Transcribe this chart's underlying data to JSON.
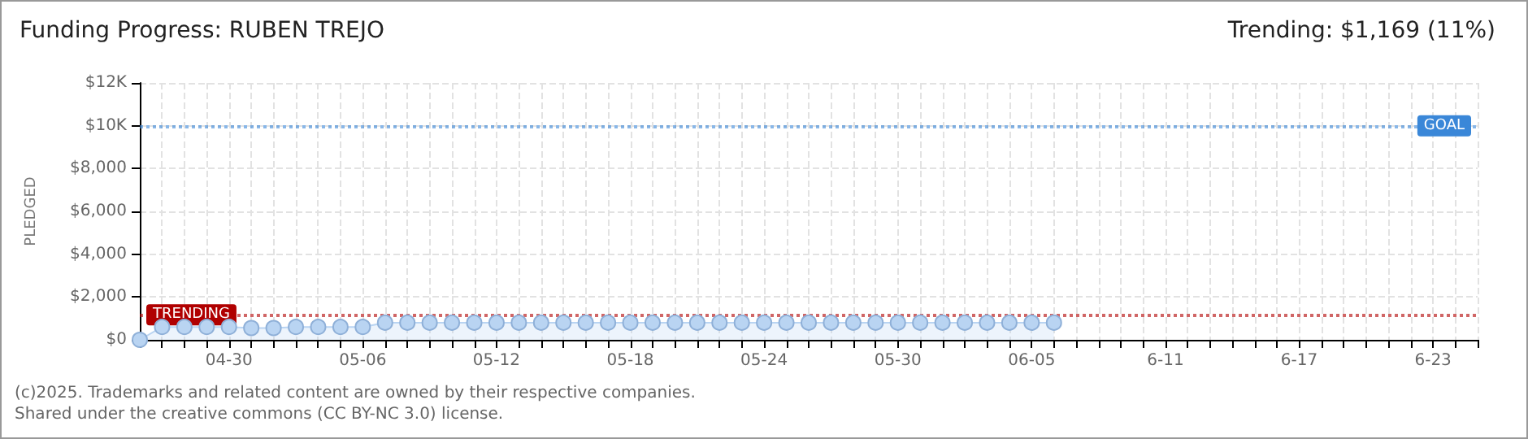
{
  "chart_data": {
    "type": "area",
    "title": "Funding Progress: RUBEN TREJO",
    "subtitle": "Trending: $1,169 (11%)",
    "ylabel": "PLEDGED",
    "categories": [
      null,
      null,
      null,
      null,
      "04-30",
      null,
      null,
      null,
      null,
      null,
      "05-06",
      null,
      null,
      null,
      null,
      null,
      "05-12",
      null,
      null,
      null,
      null,
      null,
      "05-18",
      null,
      null,
      null,
      null,
      null,
      "05-24",
      null,
      null,
      null,
      null,
      null,
      "05-30",
      null,
      null,
      null,
      null,
      null,
      "06-05",
      null,
      null,
      null,
      null,
      null,
      "6-11",
      null,
      null,
      null,
      null,
      null,
      "6-17",
      null,
      null,
      null,
      null,
      null,
      "6-23",
      null,
      null
    ],
    "series": [
      {
        "color": "#b9d4f2",
        "values": [
          0,
          600,
          600,
          600,
          600,
          550,
          550,
          600,
          600,
          600,
          600,
          800,
          800,
          800,
          800,
          800,
          800,
          800,
          800,
          800,
          800,
          800,
          800,
          800,
          800,
          800,
          800,
          800,
          800,
          800,
          800,
          800,
          800,
          800,
          800,
          800,
          800,
          800,
          800,
          800,
          800,
          800,
          null,
          null,
          null,
          null,
          null,
          null,
          null,
          null,
          null,
          null,
          null,
          null,
          null,
          null,
          null,
          null,
          null,
          null,
          null
        ]
      }
    ],
    "ylim": [
      0,
      12000
    ],
    "yticks": [
      {
        "value": 0,
        "label": "$0"
      },
      {
        "value": 2000,
        "label": "$2,000"
      },
      {
        "value": 4000,
        "label": "$4,000"
      },
      {
        "value": 6000,
        "label": "$6,000"
      },
      {
        "value": 8000,
        "label": "$8,000"
      },
      {
        "value": 10000,
        "label": "$10K"
      },
      {
        "value": 12000,
        "label": "$12K"
      }
    ],
    "ref_lines": [
      {
        "axis": "y",
        "value": 10000,
        "label": "GOAL",
        "color": "#3a87d8",
        "line_style": "dotted"
      },
      {
        "axis": "y",
        "value": 1169,
        "label": "TRENDING",
        "color": "#b00000",
        "line_style": "dotted"
      }
    ],
    "annotations": [
      "(c)2025. Trademarks and related content are owned by their respective companies.",
      "Shared under the creative commons (CC BY-NC 3.0) license."
    ],
    "grid": true,
    "marker": "circle"
  }
}
